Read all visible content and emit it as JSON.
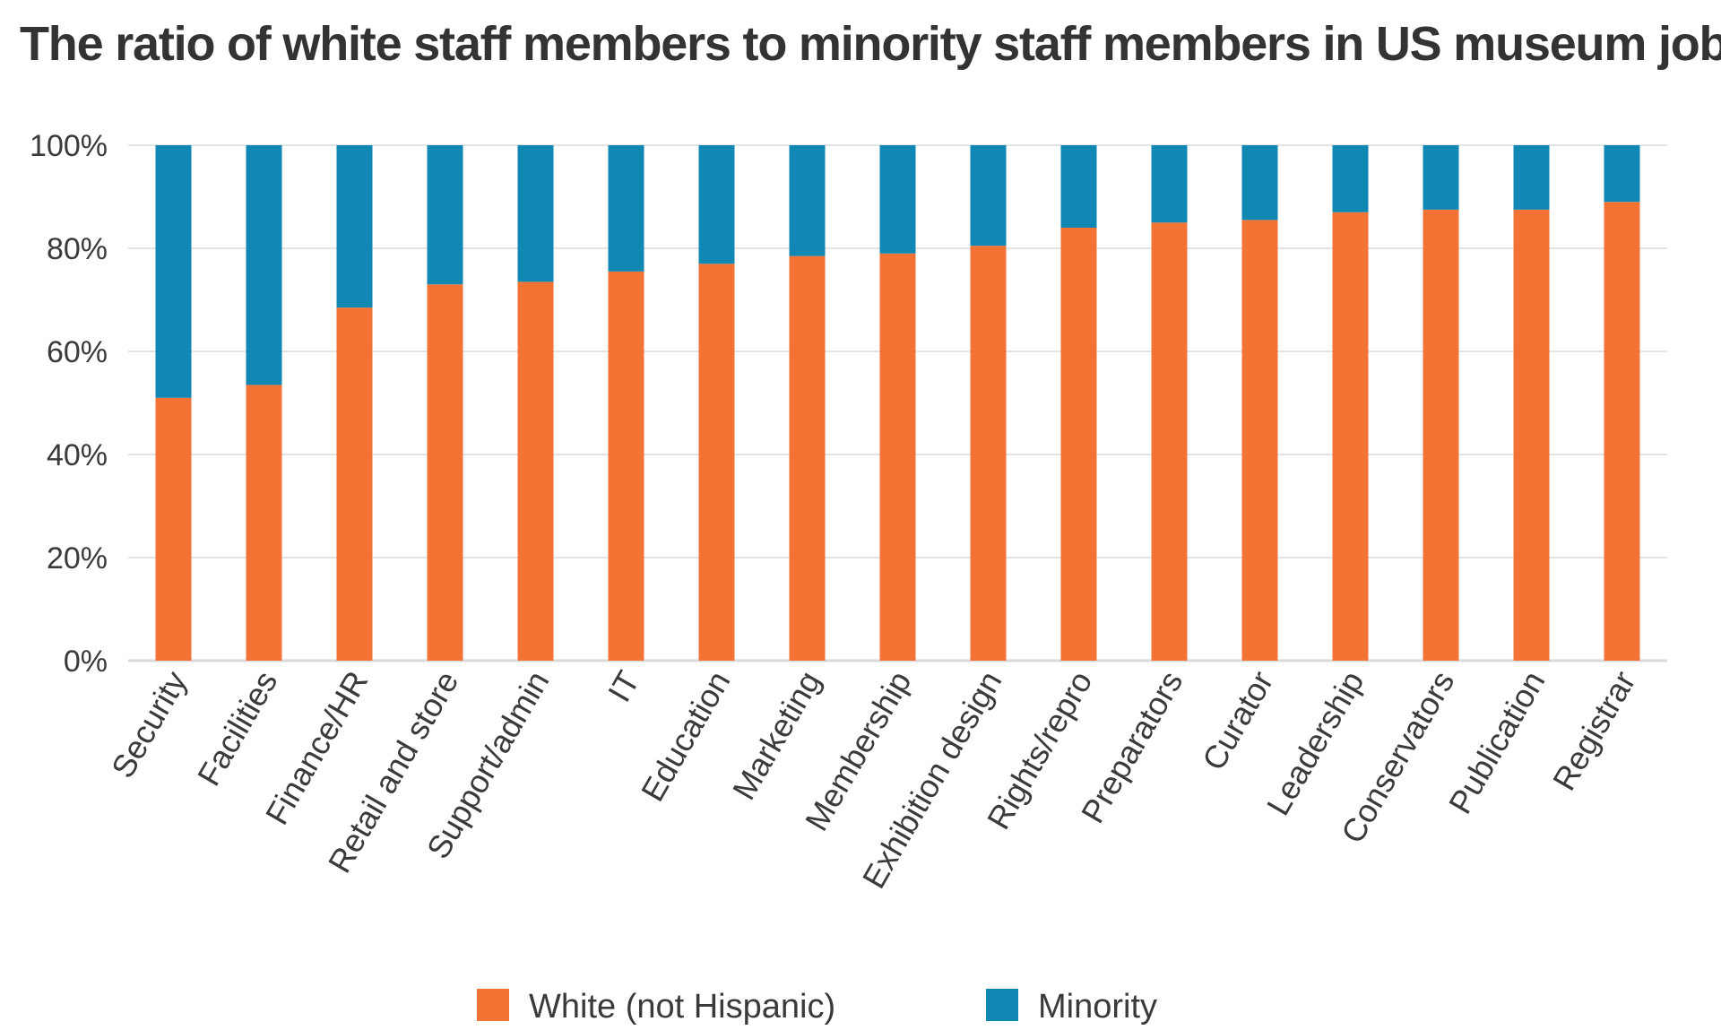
{
  "chart_data": {
    "type": "bar",
    "stacked": true,
    "title": "The ratio of white staff members to minority staff members in US museum jobs",
    "xlabel": "",
    "ylabel": "",
    "ylim": [
      0,
      100
    ],
    "yticks": [
      "0%",
      "20%",
      "40%",
      "60%",
      "80%",
      "100%"
    ],
    "grid": true,
    "legend_position": "bottom",
    "categories": [
      "Security",
      "Facilities",
      "Finance/HR",
      "Retail and store",
      "Support/admin",
      "IT",
      "Education",
      "Marketing",
      "Membership",
      "Exhibition design",
      "Rights/repro",
      "Preparators",
      "Curator",
      "Leadership",
      "Conservators",
      "Publication",
      "Registrar"
    ],
    "series": [
      {
        "name": "White (not Hispanic)",
        "color": "#f37335",
        "values": [
          51,
          53.5,
          68.5,
          73,
          73.5,
          75.5,
          77,
          78.5,
          79,
          80.5,
          84,
          85,
          85.5,
          87,
          87.5,
          87.5,
          89
        ]
      },
      {
        "name": "Minority",
        "color": "#1187b4",
        "values": [
          49,
          46.5,
          31.5,
          27,
          26.5,
          24.5,
          23,
          21.5,
          21,
          19.5,
          16,
          15,
          14.5,
          13,
          12.5,
          12.5,
          11
        ]
      }
    ]
  }
}
